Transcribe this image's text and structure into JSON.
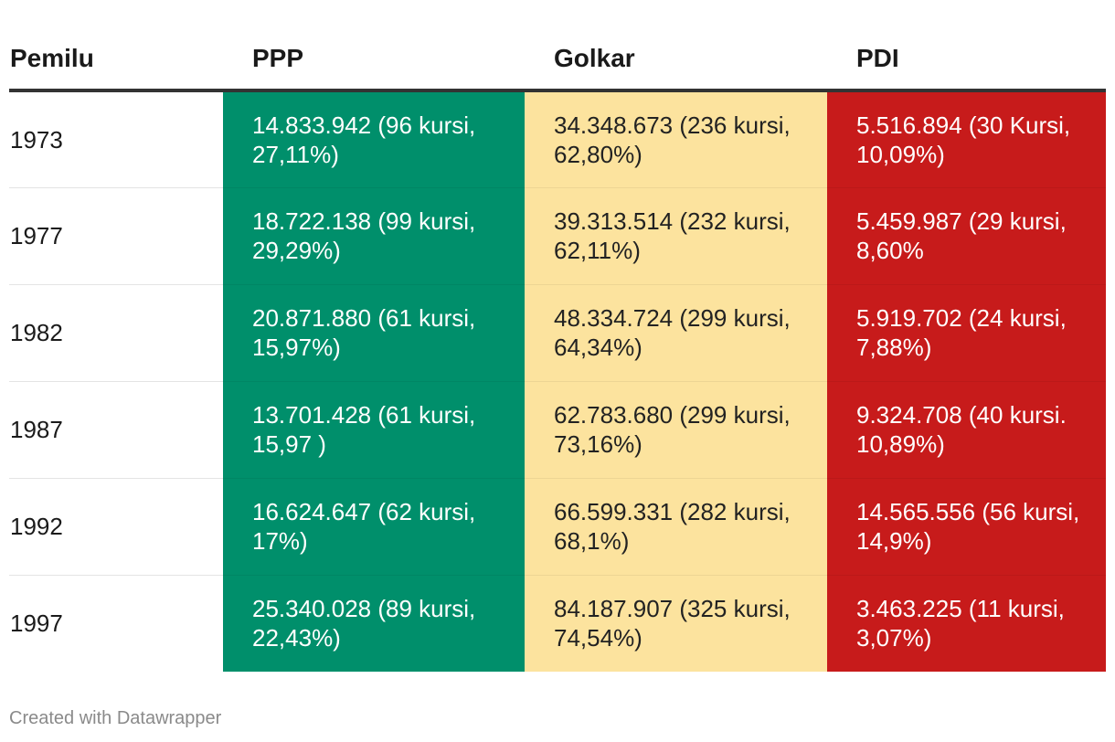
{
  "colors": {
    "ppp": "#008f6b",
    "golkar": "#fce39e",
    "pdi": "#c71b1b"
  },
  "chart_data": {
    "type": "table",
    "columns": [
      "Pemilu",
      "PPP",
      "Golkar",
      "PDI"
    ],
    "rows": [
      {
        "year": "1973",
        "ppp": "14.833.942 (96 kursi, 27,11%)",
        "golkar": "34.348.673 (236 kursi, 62,80%)",
        "pdi": "5.516.894 (30 Kursi, 10,09%)"
      },
      {
        "year": "1977",
        "ppp": "18.722.138 (99 kursi, 29,29%)",
        "golkar": "39.313.514 (232 kursi, 62,11%)",
        "pdi": "5.459.987 (29 kursi, 8,60%"
      },
      {
        "year": "1982",
        "ppp": "20.871.880 (61 kursi, 15,97%)",
        "golkar": "48.334.724 (299 kursi, 64,34%)",
        "pdi": "5.919.702 (24 kursi, 7,88%)"
      },
      {
        "year": "1987",
        "ppp": "13.701.428 (61 kursi, 15,97 )",
        "golkar": "62.783.680 (299 kursi, 73,16%)",
        "pdi": "9.324.708 (40 kursi. 10,89%)"
      },
      {
        "year": "1992",
        "ppp": "16.624.647 (62 kursi, 17%)",
        "golkar": "66.599.331 (282 kursi, 68,1%)",
        "pdi": "14.565.556 (56 kursi, 14,9%)"
      },
      {
        "year": "1997",
        "ppp": "25.340.028 (89 kursi, 22,43%)",
        "golkar": "84.187.907 (325 kursi, 74,54%)",
        "pdi": "3.463.225 (11 kursi, 3,07%)"
      }
    ]
  },
  "footer": {
    "credit": "Created with Datawrapper"
  }
}
